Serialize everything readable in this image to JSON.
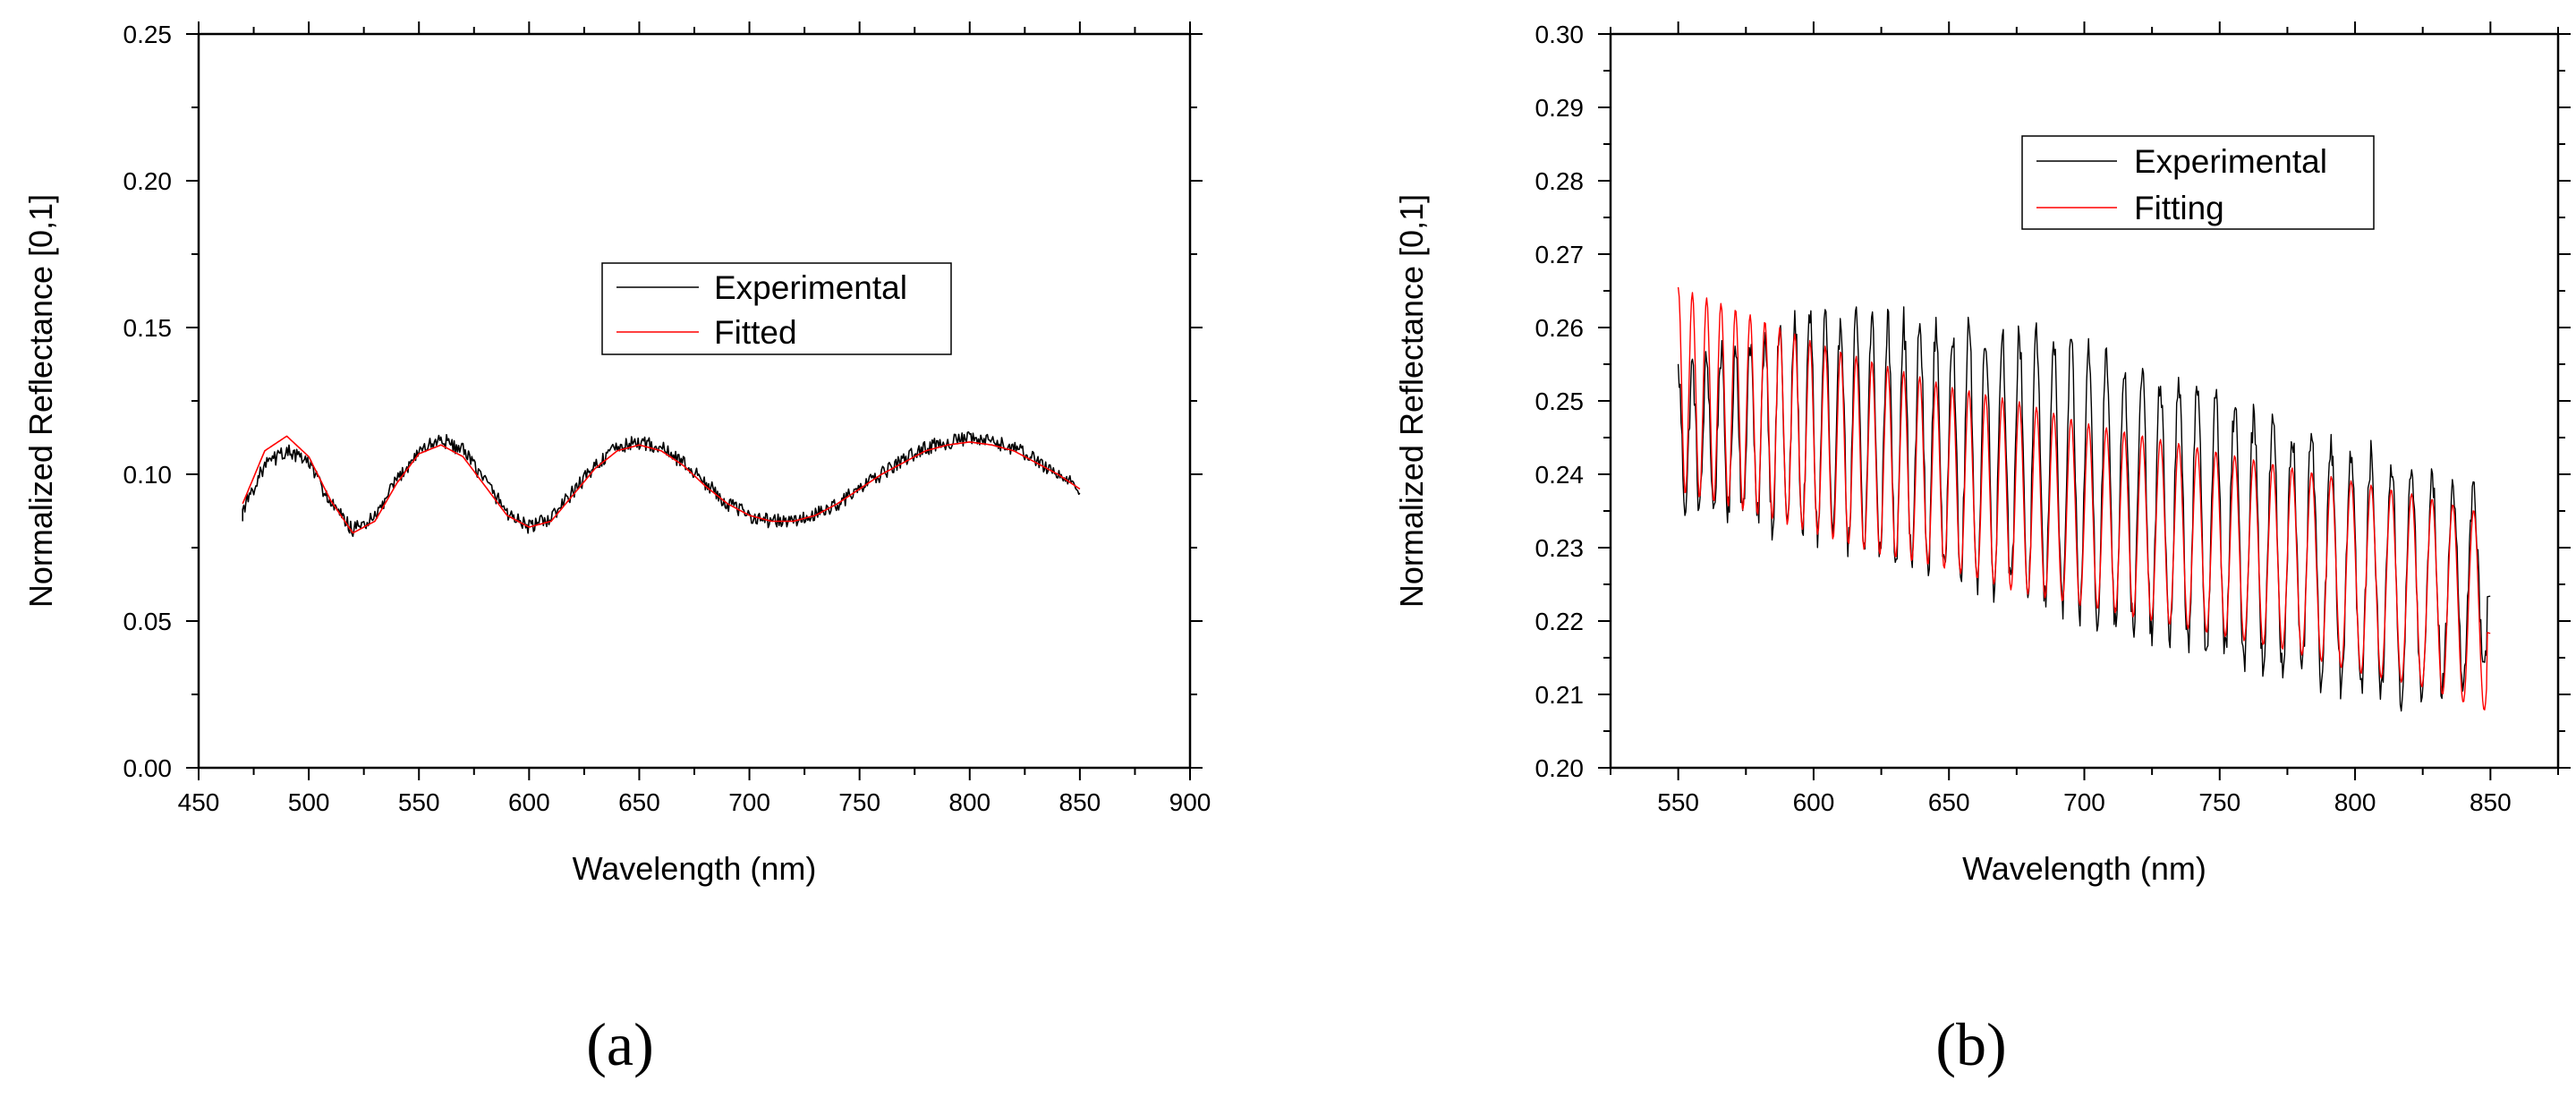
{
  "chart_data": [
    {
      "type": "line",
      "panel_label": "(a)",
      "title": "",
      "xlabel": "Wavelength (nm)",
      "ylabel": "Normalized Reflectance [0,1]",
      "xlim": [
        450,
        900
      ],
      "ylim": [
        0.0,
        0.25
      ],
      "x_ticks": [
        450,
        500,
        550,
        600,
        650,
        700,
        750,
        800,
        850,
        900
      ],
      "x_tick_labels": [
        "450",
        "500",
        "550",
        "600",
        "650",
        "700",
        "750",
        "800",
        "850",
        "900"
      ],
      "y_ticks": [
        0.0,
        0.05,
        0.1,
        0.15,
        0.2,
        0.25
      ],
      "y_tick_labels": [
        "0.00",
        "0.05",
        "0.10",
        "0.15",
        "0.20",
        "0.25"
      ],
      "grid": false,
      "legend_position": "center-right",
      "x_range": [
        470,
        850
      ],
      "series": [
        {
          "name": "Experimental",
          "color": "#000000",
          "noise": 0.0025,
          "x": [
            470,
            480,
            490,
            500,
            510,
            520,
            530,
            540,
            550,
            560,
            570,
            580,
            590,
            600,
            610,
            620,
            630,
            640,
            650,
            660,
            670,
            680,
            690,
            700,
            710,
            720,
            730,
            740,
            750,
            760,
            770,
            780,
            790,
            800,
            810,
            820,
            830,
            840,
            850
          ],
          "y": [
            0.088,
            0.103,
            0.108,
            0.104,
            0.09,
            0.081,
            0.085,
            0.098,
            0.108,
            0.112,
            0.108,
            0.098,
            0.087,
            0.082,
            0.085,
            0.094,
            0.103,
            0.109,
            0.111,
            0.109,
            0.104,
            0.097,
            0.09,
            0.086,
            0.084,
            0.084,
            0.086,
            0.09,
            0.095,
            0.1,
            0.105,
            0.109,
            0.111,
            0.112,
            0.111,
            0.109,
            0.105,
            0.1,
            0.095
          ]
        },
        {
          "name": "Fitted",
          "color": "#ff0000",
          "noise": 0,
          "x": [
            470,
            480,
            490,
            500,
            510,
            520,
            530,
            540,
            550,
            560,
            570,
            580,
            590,
            600,
            610,
            620,
            630,
            640,
            650,
            660,
            670,
            680,
            690,
            700,
            710,
            720,
            730,
            740,
            750,
            760,
            770,
            780,
            790,
            800,
            810,
            820,
            830,
            840,
            850
          ],
          "y": [
            0.09,
            0.108,
            0.113,
            0.106,
            0.091,
            0.08,
            0.084,
            0.097,
            0.107,
            0.11,
            0.106,
            0.096,
            0.086,
            0.082,
            0.084,
            0.093,
            0.102,
            0.108,
            0.11,
            0.108,
            0.103,
            0.096,
            0.09,
            0.086,
            0.084,
            0.084,
            0.086,
            0.09,
            0.095,
            0.1,
            0.104,
            0.108,
            0.11,
            0.111,
            0.11,
            0.108,
            0.104,
            0.1,
            0.095
          ]
        }
      ]
    },
    {
      "type": "line",
      "panel_label": "(b)",
      "title": "",
      "xlabel": "Wavelength (nm)",
      "ylabel": "Normalized Reflectance [0,1]",
      "xlim": [
        525,
        875
      ],
      "ylim": [
        0.2,
        0.3
      ],
      "x_ticks": [
        550,
        600,
        650,
        700,
        750,
        800,
        850
      ],
      "x_tick_labels": [
        "550",
        "600",
        "650",
        "700",
        "750",
        "800",
        "850"
      ],
      "y_ticks": [
        0.2,
        0.21,
        0.22,
        0.23,
        0.24,
        0.25,
        0.26,
        0.27,
        0.28,
        0.29,
        0.3
      ],
      "y_tick_labels": [
        "0.20",
        "0.21",
        "0.22",
        "0.23",
        "0.24",
        "0.25",
        "0.26",
        "0.27",
        "0.28",
        "0.29",
        "0.30"
      ],
      "grid": false,
      "legend_position": "top-right",
      "x_range": [
        550,
        850
      ],
      "fringe_period_start": 5.2,
      "fringe_period_end": 7.8,
      "series": [
        {
          "name": "Experimental",
          "color": "#000000",
          "jitter": 0.004,
          "x": [
            550,
            575,
            600,
            625,
            650,
            675,
            700,
            725,
            750,
            775,
            800,
            825,
            850
          ],
          "upper": [
            0.254,
            0.258,
            0.262,
            0.261,
            0.26,
            0.259,
            0.257,
            0.253,
            0.25,
            0.246,
            0.243,
            0.24,
            0.236
          ],
          "lower": [
            0.236,
            0.234,
            0.232,
            0.229,
            0.226,
            0.224,
            0.221,
            0.218,
            0.216,
            0.213,
            0.211,
            0.209,
            0.215
          ]
        },
        {
          "name": "Fitting",
          "color": "#ff0000",
          "jitter": 0,
          "x": [
            550,
            575,
            600,
            625,
            650,
            675,
            700,
            725,
            750,
            775,
            800,
            825,
            850
          ],
          "upper": [
            0.2655,
            0.262,
            0.258,
            0.255,
            0.252,
            0.25,
            0.247,
            0.245,
            0.243,
            0.241,
            0.239,
            0.237,
            0.2345
          ],
          "lower": [
            0.2375,
            0.235,
            0.232,
            0.229,
            0.227,
            0.224,
            0.222,
            0.22,
            0.218,
            0.216,
            0.213,
            0.211,
            0.2075
          ]
        }
      ]
    }
  ]
}
